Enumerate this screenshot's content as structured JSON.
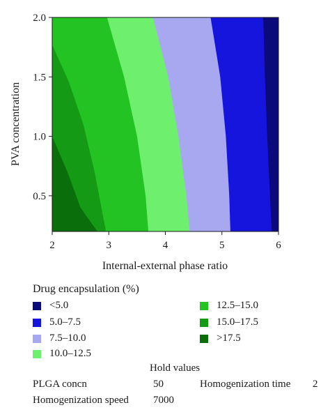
{
  "chart_data": {
    "type": "contour",
    "xlabel": "Internal-external phase ratio",
    "ylabel": "PVA concentration",
    "xlim": [
      2,
      6
    ],
    "ylim": [
      0.2,
      2.0
    ],
    "xticks": [
      "2",
      "3",
      "4",
      "5",
      "6"
    ],
    "yticks": [
      "0.5",
      "1.0",
      "1.5",
      "2.0"
    ],
    "legend_title": "Drug encapsulation (%)",
    "levels": [
      {
        "label": "<5.0",
        "color": "#0a0a7a"
      },
      {
        "label": "5.0–7.5",
        "color": "#1515dd"
      },
      {
        "label": "7.5–10.0",
        "color": "#a8a8f0"
      },
      {
        "label": "10.0–12.5",
        "color": "#6ef06e"
      },
      {
        "label": "12.5–15.0",
        "color": "#22c322"
      },
      {
        "label": "15.0–17.5",
        "color": "#149a14"
      },
      {
        "label": ">17.5",
        "color": "#0a6e0a"
      }
    ],
    "contours": [
      {
        "level": 5.0,
        "points": [
          [
            5.73,
            2.0
          ],
          [
            5.76,
            1.5
          ],
          [
            5.8,
            1.0
          ],
          [
            5.85,
            0.5
          ],
          [
            5.88,
            0.2
          ]
        ]
      },
      {
        "level": 7.5,
        "points": [
          [
            4.8,
            2.0
          ],
          [
            4.97,
            1.5
          ],
          [
            5.07,
            1.0
          ],
          [
            5.13,
            0.5
          ],
          [
            5.15,
            0.2
          ]
        ]
      },
      {
        "level": 10.0,
        "points": [
          [
            3.78,
            2.0
          ],
          [
            4.05,
            1.5
          ],
          [
            4.23,
            1.0
          ],
          [
            4.37,
            0.5
          ],
          [
            4.43,
            0.2
          ]
        ]
      },
      {
        "level": 12.5,
        "points": [
          [
            2.97,
            2.0
          ],
          [
            3.27,
            1.5
          ],
          [
            3.5,
            1.0
          ],
          [
            3.65,
            0.5
          ],
          [
            3.7,
            0.2
          ]
        ]
      },
      {
        "level": 15.0,
        "points": [
          [
            2.0,
            1.77
          ],
          [
            2.3,
            1.45
          ],
          [
            2.55,
            1.1
          ],
          [
            2.75,
            0.7
          ],
          [
            2.95,
            0.2
          ]
        ]
      },
      {
        "level": 17.5,
        "points": [
          [
            2.0,
            1.0
          ],
          [
            2.27,
            0.7
          ],
          [
            2.5,
            0.4
          ],
          [
            2.8,
            0.2
          ]
        ]
      }
    ]
  },
  "hold_values": {
    "title": "Hold values",
    "plga_label": "PLGA concn",
    "plga_value": "50",
    "homog_time_label": "Homogenization time",
    "homog_time_value": "2",
    "homog_speed_label": "Homogenization speed",
    "homog_speed_value": "7000"
  }
}
